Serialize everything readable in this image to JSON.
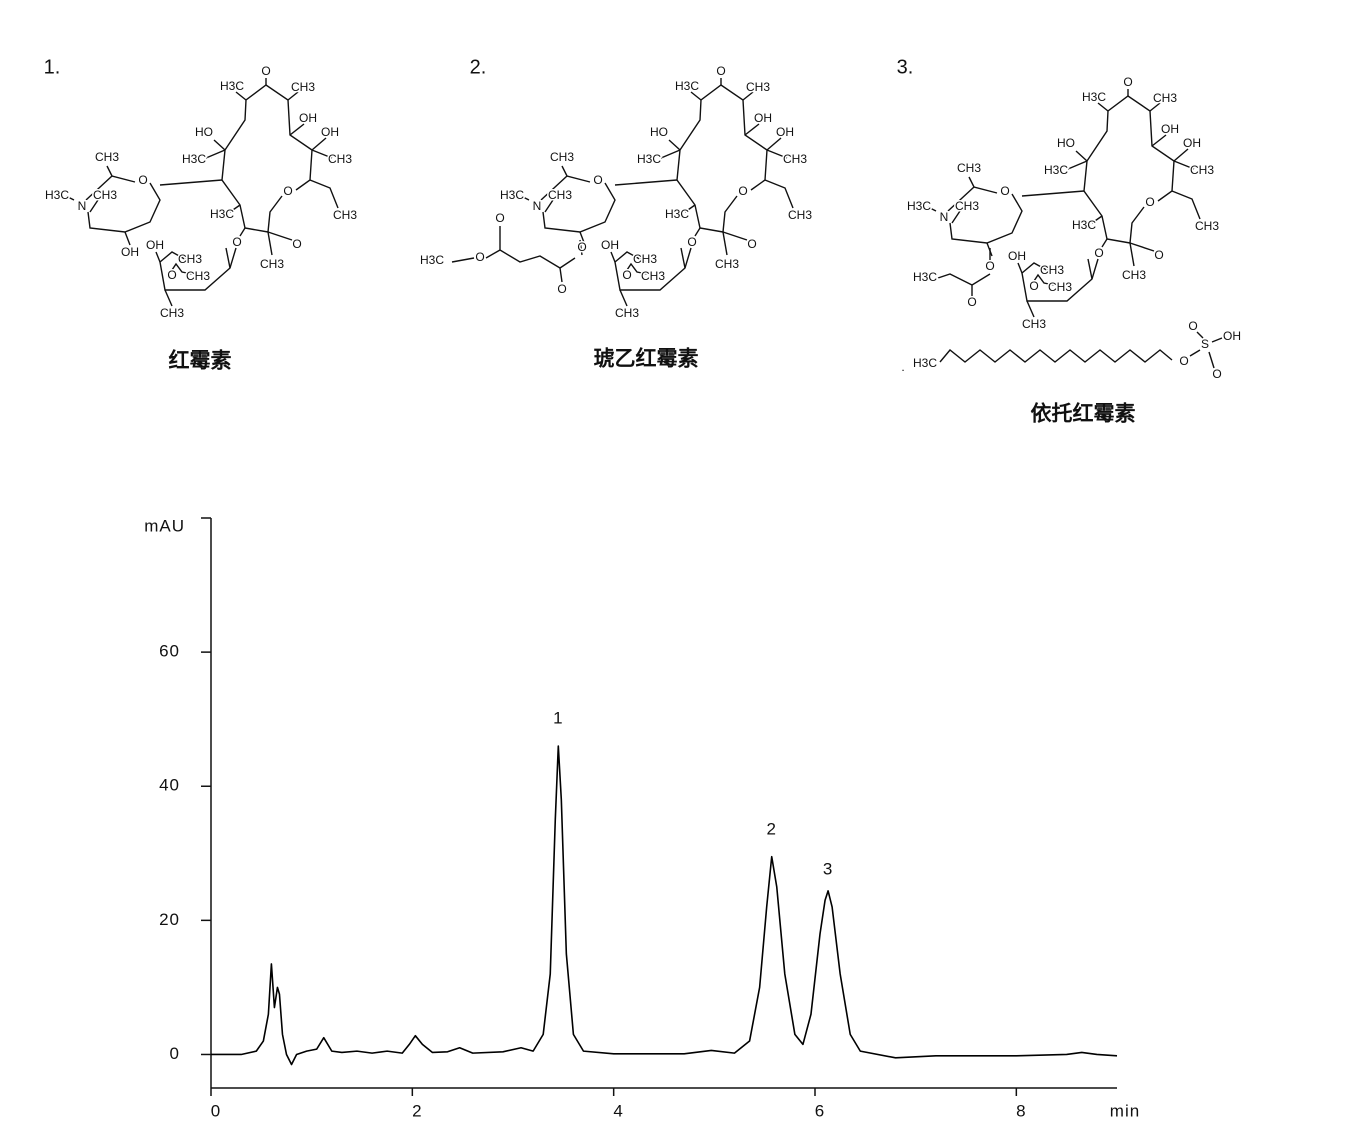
{
  "structures": [
    {
      "number": "1.",
      "name": "红霉素",
      "atoms": [
        "H3C",
        "O",
        "CH3",
        "HO",
        "OH",
        "OH",
        "H3C",
        "CH3",
        "O",
        "CH3",
        "H3C",
        "O",
        "CH3",
        "O",
        "CH3",
        "O",
        "N",
        "CH3",
        "H3C",
        "OH",
        "CH3",
        "O",
        "CH3",
        "CH3",
        "OH"
      ]
    },
    {
      "number": "2.",
      "name": "琥乙红霉素",
      "atoms": [
        "H3C",
        "O",
        "CH3",
        "HO",
        "OH",
        "OH",
        "H3C",
        "CH3",
        "O",
        "CH3",
        "H3C",
        "O",
        "CH3",
        "O",
        "CH3",
        "O",
        "N",
        "CH3",
        "H3C",
        "OH",
        "CH3",
        "O",
        "CH3",
        "CH3",
        "O",
        "H3C",
        "O",
        "O",
        "O"
      ]
    },
    {
      "number": "3.",
      "name": "依托红霉素",
      "atoms": [
        "H3C",
        "O",
        "CH3",
        "HO",
        "OH",
        "OH",
        "H3C",
        "CH3",
        "O",
        "CH3",
        "H3C",
        "O",
        "CH3",
        "O",
        "CH3",
        "O",
        "N",
        "CH3",
        "H3C",
        "OH",
        "CH3",
        "O",
        "CH3",
        "CH3",
        "O",
        "H3C",
        "O",
        ".",
        "H3C",
        "O",
        "S",
        "OH",
        "O",
        "O"
      ]
    }
  ],
  "chart_data": {
    "type": "line",
    "x_label": "min",
    "y_label": "mAU",
    "color": "#000000",
    "x": [
      0,
      0.3,
      0.45,
      0.52,
      0.57,
      0.6,
      0.63,
      0.66,
      0.68,
      0.71,
      0.75,
      0.8,
      0.85,
      0.95,
      1.05,
      1.12,
      1.2,
      1.3,
      1.45,
      1.6,
      1.75,
      1.9,
      1.97,
      2.03,
      2.1,
      2.2,
      2.35,
      2.47,
      2.6,
      2.9,
      3.08,
      3.2,
      3.3,
      3.37,
      3.42,
      3.45,
      3.48,
      3.53,
      3.6,
      3.7,
      4.0,
      4.7,
      4.97,
      5.2,
      5.35,
      5.45,
      5.52,
      5.57,
      5.62,
      5.7,
      5.8,
      5.88,
      5.96,
      6.05,
      6.1,
      6.13,
      6.17,
      6.25,
      6.35,
      6.45,
      6.8,
      7.2,
      8.0,
      8.5,
      8.65,
      8.8,
      9.0
    ],
    "values": [
      0,
      0,
      0.5,
      2,
      6,
      13.5,
      7,
      10,
      9,
      3,
      0,
      -1.5,
      0,
      0.5,
      0.8,
      2.5,
      0.5,
      0.3,
      0.5,
      0.2,
      0.5,
      0.2,
      1.5,
      2.8,
      1.5,
      0.3,
      0.4,
      1,
      0.2,
      0.4,
      1,
      0.5,
      3,
      12,
      35,
      46,
      38,
      15,
      3,
      0.5,
      0.1,
      0.1,
      0.6,
      0.2,
      2,
      10,
      22,
      29.5,
      25,
      12,
      3,
      1.5,
      6,
      18,
      23,
      24.4,
      22,
      12,
      3,
      0.5,
      -0.5,
      -0.2,
      -0.2,
      0,
      0.3,
      0,
      -0.2
    ],
    "xlim": [
      0,
      9
    ],
    "ylim": [
      -5,
      80
    ],
    "xticks": [
      0,
      2,
      4,
      6,
      8
    ],
    "yticks": [
      0,
      20,
      40,
      60
    ],
    "annotations": [
      {
        "text": "1",
        "x": 3.45,
        "y": 50
      },
      {
        "text": "2",
        "x": 5.57,
        "y": 33.5
      },
      {
        "text": "3",
        "x": 6.13,
        "y": 27.5
      }
    ]
  }
}
